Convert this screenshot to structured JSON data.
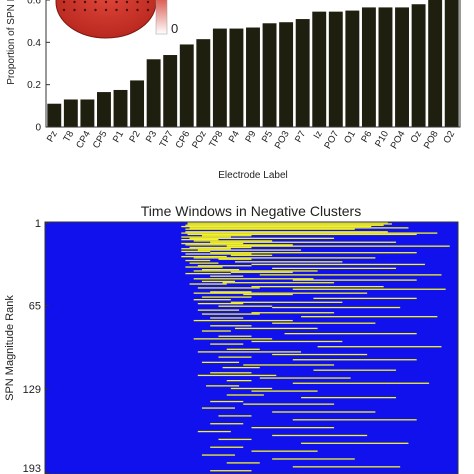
{
  "chart_data": [
    {
      "type": "bar",
      "title": "",
      "xlabel": "Electrode Label",
      "ylabel": "Proportion of SPN F",
      "ylim": [
        0,
        0.6
      ],
      "yticks": [
        0,
        0.2,
        0.4,
        0.6
      ],
      "ytick_labels": [
        "0",
        "0.2",
        "0.4",
        "0.6"
      ],
      "bar_color": "#1f1f0f",
      "categories": [
        "Pz",
        "T8",
        "CP4",
        "CP5",
        "P1",
        "P2",
        "P3",
        "TP7",
        "CP6",
        "POz",
        "TP8",
        "P4",
        "P9",
        "P5",
        "PO3",
        "P7",
        "Iz",
        "PO7",
        "O1",
        "P6",
        "P10",
        "PO4",
        "Oz",
        "PO8",
        "O2"
      ],
      "values": [
        0.11,
        0.13,
        0.13,
        0.165,
        0.175,
        0.22,
        0.32,
        0.34,
        0.39,
        0.415,
        0.465,
        0.465,
        0.47,
        0.49,
        0.495,
        0.51,
        0.545,
        0.545,
        0.55,
        0.565,
        0.565,
        0.565,
        0.58,
        0.6,
        0.64
      ],
      "inset": {
        "colorbar_tick": "0",
        "colors": [
          "#d43a2f",
          "#ffffff"
        ]
      }
    },
    {
      "type": "heatmap",
      "title": "Time Windows in Negative Clusters",
      "xlabel": "",
      "ylabel": "SPN Magnitude Rank",
      "yticks": [
        1,
        65,
        129,
        193
      ],
      "ytick_labels": [
        "1",
        "65",
        "129",
        "193"
      ],
      "background_color": "#1111ee",
      "cluster_color": "#f2f227",
      "time_extent": [
        0,
        1
      ],
      "n_rows": 193,
      "rows": [
        [
          1,
          0.345,
          0.83
        ],
        [
          2,
          0.345,
          0.84
        ],
        [
          3,
          0.34,
          0.82
        ],
        [
          4,
          0.33,
          0.79
        ],
        [
          5,
          0.35,
          0.88
        ],
        [
          6,
          0.34,
          0.75
        ],
        [
          8,
          0.34,
          0.83
        ],
        [
          9,
          0.33,
          0.95
        ],
        [
          10,
          0.345,
          0.9
        ],
        [
          11,
          0.38,
          0.5
        ],
        [
          12,
          0.33,
          0.45
        ],
        [
          13,
          0.35,
          0.7
        ],
        [
          14,
          0.33,
          0.42
        ],
        [
          15,
          0.36,
          0.55
        ],
        [
          16,
          0.4,
          0.85
        ],
        [
          17,
          0.33,
          0.48
        ],
        [
          18,
          0.34,
          0.6
        ],
        [
          19,
          0.44,
          0.98
        ],
        [
          20,
          0.35,
          0.5
        ],
        [
          21,
          0.33,
          0.45
        ],
        [
          22,
          0.37,
          0.62
        ],
        [
          23,
          0.33,
          0.4
        ],
        [
          24,
          0.4,
          0.9
        ],
        [
          25,
          0.34,
          0.5
        ],
        [
          26,
          0.45,
          0.55
        ],
        [
          27,
          0.33,
          0.44
        ],
        [
          28,
          0.36,
          0.8
        ],
        [
          29,
          0.42,
          0.5
        ],
        [
          30,
          0.34,
          0.4
        ],
        [
          31,
          0.46,
          0.72
        ],
        [
          32,
          0.35,
          0.42
        ],
        [
          33,
          0.5,
          0.92
        ],
        [
          34,
          0.37,
          0.5
        ],
        [
          35,
          0.34,
          0.43
        ],
        [
          36,
          0.55,
          0.85
        ],
        [
          37,
          0.38,
          0.47
        ],
        [
          38,
          0.36,
          0.66
        ],
        [
          39,
          0.45,
          0.6
        ],
        [
          40,
          0.34,
          0.45
        ],
        [
          41,
          0.52,
          0.96
        ],
        [
          42,
          0.4,
          0.48
        ],
        [
          44,
          0.36,
          0.65
        ],
        [
          45,
          0.6,
          0.9
        ],
        [
          46,
          0.38,
          0.46
        ],
        [
          47,
          0.43,
          0.7
        ],
        [
          48,
          0.35,
          0.44
        ],
        [
          50,
          0.5,
          0.82
        ],
        [
          51,
          0.37,
          0.52
        ],
        [
          52,
          0.6,
          0.97
        ],
        [
          54,
          0.4,
          0.5
        ],
        [
          55,
          0.36,
          0.78
        ],
        [
          56,
          0.48,
          0.6
        ],
        [
          58,
          0.38,
          0.5
        ],
        [
          59,
          0.65,
          0.9
        ],
        [
          60,
          0.36,
          0.45
        ],
        [
          62,
          0.45,
          0.72
        ],
        [
          63,
          0.37,
          0.48
        ],
        [
          65,
          0.42,
          0.55
        ],
        [
          66,
          0.55,
          0.86
        ],
        [
          68,
          0.37,
          0.47
        ],
        [
          70,
          0.5,
          0.7
        ],
        [
          71,
          0.38,
          0.52
        ],
        [
          73,
          0.62,
          0.95
        ],
        [
          74,
          0.4,
          0.48
        ],
        [
          76,
          0.36,
          0.6
        ],
        [
          78,
          0.55,
          0.8
        ],
        [
          80,
          0.4,
          0.5
        ],
        [
          82,
          0.46,
          0.66
        ],
        [
          84,
          0.38,
          0.45
        ],
        [
          86,
          0.58,
          0.9
        ],
        [
          88,
          0.42,
          0.5
        ],
        [
          90,
          0.36,
          0.55
        ],
        [
          92,
          0.5,
          0.72
        ],
        [
          94,
          0.4,
          0.48
        ],
        [
          96,
          0.66,
          0.96
        ],
        [
          98,
          0.44,
          0.52
        ],
        [
          100,
          0.37,
          0.62
        ],
        [
          102,
          0.55,
          0.78
        ],
        [
          104,
          0.42,
          0.5
        ],
        [
          106,
          0.6,
          0.9
        ],
        [
          108,
          0.38,
          0.47
        ],
        [
          110,
          0.48,
          0.7
        ],
        [
          112,
          0.43,
          0.52
        ],
        [
          114,
          0.65,
          0.85
        ],
        [
          116,
          0.4,
          0.5
        ],
        [
          118,
          0.37,
          0.56
        ],
        [
          120,
          0.52,
          0.74
        ],
        [
          122,
          0.44,
          0.5
        ],
        [
          124,
          0.6,
          0.93
        ],
        [
          126,
          0.39,
          0.47
        ],
        [
          128,
          0.45,
          0.55
        ],
        [
          130,
          0.5,
          0.66
        ],
        [
          133,
          0.44,
          0.53
        ],
        [
          135,
          0.62,
          0.85
        ],
        [
          138,
          0.4,
          0.48
        ],
        [
          140,
          0.48,
          0.7
        ],
        [
          143,
          0.38,
          0.46
        ],
        [
          146,
          0.55,
          0.8
        ],
        [
          149,
          0.42,
          0.5
        ],
        [
          152,
          0.6,
          0.9
        ],
        [
          155,
          0.4,
          0.48
        ],
        [
          158,
          0.5,
          0.7
        ],
        [
          161,
          0.37,
          0.45
        ],
        [
          164,
          0.55,
          0.78
        ],
        [
          167,
          0.42,
          0.5
        ],
        [
          170,
          0.62,
          0.88
        ],
        [
          173,
          0.4,
          0.48
        ],
        [
          176,
          0.5,
          0.66
        ],
        [
          179,
          0.38,
          0.46
        ],
        [
          182,
          0.55,
          0.75
        ],
        [
          185,
          0.44,
          0.52
        ],
        [
          188,
          0.6,
          0.86
        ],
        [
          191,
          0.4,
          0.5
        ]
      ]
    }
  ]
}
